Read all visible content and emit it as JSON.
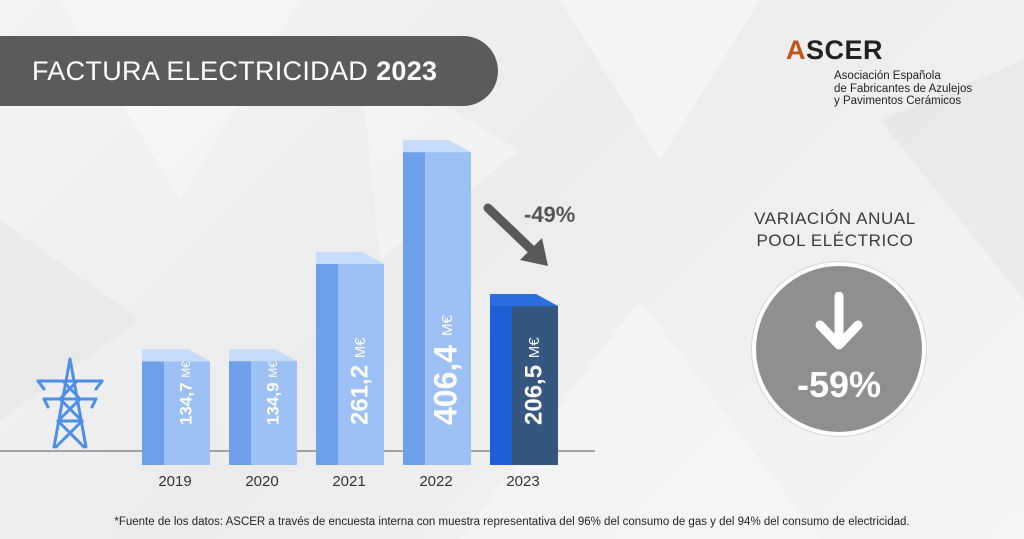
{
  "header": {
    "title_light": "FACTURA ELECTRICIDAD",
    "title_bold": "2023"
  },
  "logo": {
    "brand_accent": "A",
    "brand_rest": "SCER",
    "lines": [
      "Asociación Española",
      "de Fabricantes de Azulejos",
      "y Pavimentos Cerámicos"
    ]
  },
  "chart_data": {
    "type": "bar",
    "categories": [
      "2019",
      "2020",
      "2021",
      "2022",
      "2023"
    ],
    "values": [
      134.7,
      134.9,
      261.2,
      406.4,
      206.5
    ],
    "value_labels": [
      "134,7",
      "134,9",
      "261,2",
      "406,4",
      "206,5"
    ],
    "unit": "M€",
    "annotation": "-49%",
    "highlight_index": 4,
    "colors": {
      "bar": "#9dc1f5",
      "bar_dark": "#6e9fe9",
      "highlight": "#35577f",
      "highlight_side": "#1f5fd6"
    }
  },
  "variation": {
    "title_lines": [
      "VARIACIÓN ANUAL",
      "POOL ELÉCTRICO"
    ],
    "value": "-59%",
    "icon": "arrow-down-icon"
  },
  "footnote": "*Fuente de los datos: ASCER a través de encuesta interna con muestra representativa del 96% del consumo de gas y del 94% del consumo de electricidad."
}
